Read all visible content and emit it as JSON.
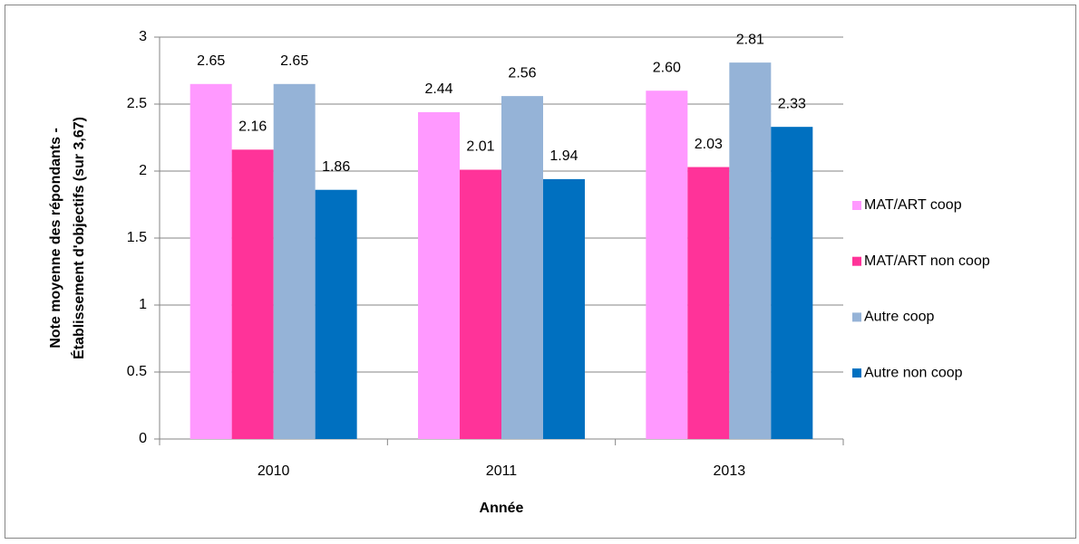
{
  "chart_data": {
    "type": "bar",
    "ylabel": [
      "Note moyenne des répondants -",
      "Établissement d'objectifs (sur 3,67)"
    ],
    "xlabel": "Année",
    "categories": [
      "2010",
      "2011",
      "2013"
    ],
    "series": [
      {
        "name": "MAT/ART coop",
        "color": "#ff99ff",
        "values": [
          2.65,
          2.44,
          2.6
        ],
        "value_labels": [
          "2.65",
          "2.44",
          "2.60"
        ]
      },
      {
        "name": "MAT/ART non coop",
        "color": "#ff3399",
        "values": [
          2.16,
          2.01,
          2.03
        ],
        "value_labels": [
          "2.16",
          "2.01",
          "2.03"
        ]
      },
      {
        "name": "Autre coop",
        "color": "#95b3d7",
        "values": [
          2.65,
          2.56,
          2.81
        ],
        "value_labels": [
          "2.65",
          "2.56",
          "2.81"
        ]
      },
      {
        "name": "Autre non coop",
        "color": "#0070c0",
        "values": [
          1.86,
          1.94,
          2.33
        ],
        "value_labels": [
          "1.86",
          "1.94",
          "2.33"
        ]
      }
    ],
    "ylim": [
      0,
      3
    ],
    "yticks": [
      0,
      0.5,
      1,
      1.5,
      2,
      2.5,
      3
    ],
    "grid": true,
    "legend": "right"
  }
}
